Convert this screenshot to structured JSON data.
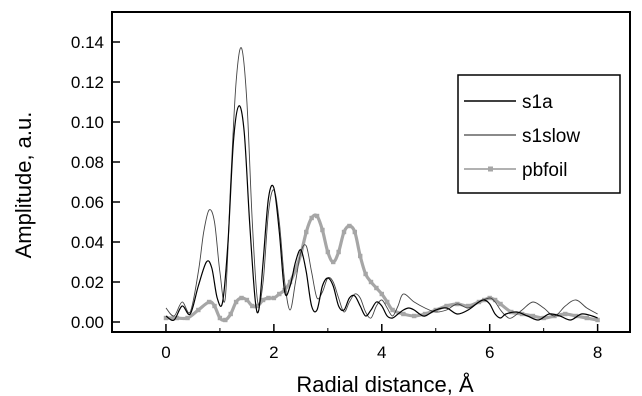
{
  "chart_data": {
    "type": "line",
    "xlabel": "Radial distance, Å",
    "ylabel": "Amplitude, a.u.",
    "xlim": [
      -1,
      8.6
    ],
    "ylim": [
      -0.005,
      0.155
    ],
    "x_ticks": [
      0,
      2,
      4,
      6,
      8
    ],
    "x_tick_labels": [
      "0",
      "2",
      "4",
      "6",
      "8"
    ],
    "y_ticks": [
      0.0,
      0.02,
      0.04,
      0.06,
      0.08,
      0.1,
      0.12,
      0.14
    ],
    "y_tick_labels": [
      "0.00",
      "0.02",
      "0.04",
      "0.06",
      "0.08",
      "0.10",
      "0.12",
      "0.14"
    ],
    "grid": false,
    "legend_position": "right",
    "series": [
      {
        "name": "s1a",
        "color": "#000000",
        "x": [
          0.0,
          0.15,
          0.3,
          0.45,
          0.6,
          0.75,
          0.85,
          0.95,
          1.05,
          1.15,
          1.25,
          1.35,
          1.45,
          1.55,
          1.65,
          1.72,
          1.8,
          1.9,
          2.0,
          2.1,
          2.2,
          2.3,
          2.4,
          2.5,
          2.6,
          2.7,
          2.8,
          2.9,
          3.0,
          3.1,
          3.2,
          3.3,
          3.4,
          3.5,
          3.6,
          3.7,
          3.8,
          3.9,
          4.0,
          4.1,
          4.2,
          4.3,
          4.4,
          4.5,
          4.6,
          4.7,
          4.8,
          5.0,
          5.2,
          5.4,
          5.6,
          5.8,
          5.9,
          6.0,
          6.1,
          6.2,
          6.3,
          6.5,
          6.7,
          6.9,
          7.1,
          7.3,
          7.5,
          7.7,
          7.9,
          8.0
        ],
        "values": [
          0.003,
          0.001,
          0.008,
          0.004,
          0.018,
          0.03,
          0.027,
          0.012,
          0.01,
          0.04,
          0.09,
          0.108,
          0.095,
          0.05,
          0.012,
          0.006,
          0.03,
          0.062,
          0.067,
          0.045,
          0.015,
          0.018,
          0.03,
          0.036,
          0.025,
          0.008,
          0.006,
          0.018,
          0.022,
          0.018,
          0.008,
          0.006,
          0.012,
          0.013,
          0.008,
          0.003,
          0.006,
          0.01,
          0.008,
          0.003,
          0.002,
          0.004,
          0.006,
          0.007,
          0.006,
          0.004,
          0.003,
          0.006,
          0.007,
          0.004,
          0.006,
          0.01,
          0.011,
          0.009,
          0.004,
          0.002,
          0.004,
          0.005,
          0.003,
          0.001,
          0.004,
          0.003,
          0.001,
          0.004,
          0.003,
          0.002
        ]
      },
      {
        "name": "s1slow",
        "color": "#444444",
        "x": [
          0.0,
          0.15,
          0.3,
          0.45,
          0.6,
          0.7,
          0.8,
          0.9,
          1.0,
          1.1,
          1.2,
          1.3,
          1.4,
          1.5,
          1.6,
          1.7,
          1.8,
          1.9,
          2.0,
          2.1,
          2.2,
          2.3,
          2.4,
          2.5,
          2.6,
          2.7,
          2.8,
          2.9,
          3.0,
          3.1,
          3.2,
          3.3,
          3.4,
          3.5,
          3.6,
          3.7,
          3.8,
          3.9,
          4.0,
          4.1,
          4.2,
          4.3,
          4.4,
          4.6,
          4.8,
          5.0,
          5.2,
          5.4,
          5.6,
          5.8,
          6.0,
          6.1,
          6.2,
          6.3,
          6.4,
          6.6,
          6.8,
          7.0,
          7.2,
          7.4,
          7.6,
          7.8,
          8.0
        ],
        "values": [
          0.007,
          0.003,
          0.01,
          0.005,
          0.025,
          0.045,
          0.056,
          0.05,
          0.025,
          0.012,
          0.07,
          0.12,
          0.137,
          0.11,
          0.05,
          0.01,
          0.02,
          0.055,
          0.066,
          0.05,
          0.02,
          0.006,
          0.02,
          0.035,
          0.038,
          0.025,
          0.012,
          0.015,
          0.022,
          0.02,
          0.012,
          0.005,
          0.01,
          0.014,
          0.012,
          0.005,
          0.002,
          0.008,
          0.011,
          0.007,
          0.003,
          0.008,
          0.014,
          0.01,
          0.007,
          0.005,
          0.006,
          0.009,
          0.007,
          0.01,
          0.012,
          0.01,
          0.006,
          0.003,
          0.002,
          0.006,
          0.01,
          0.007,
          0.003,
          0.008,
          0.011,
          0.007,
          0.004
        ]
      },
      {
        "name": "pbfoil",
        "color": "#a6a6a6",
        "x": [
          0.0,
          0.2,
          0.4,
          0.6,
          0.8,
          0.9,
          1.0,
          1.1,
          1.2,
          1.3,
          1.4,
          1.5,
          1.6,
          1.7,
          1.8,
          1.9,
          2.0,
          2.1,
          2.2,
          2.3,
          2.4,
          2.5,
          2.6,
          2.7,
          2.8,
          2.9,
          3.0,
          3.1,
          3.2,
          3.3,
          3.4,
          3.5,
          3.6,
          3.7,
          3.8,
          3.9,
          4.0,
          4.1,
          4.2,
          4.4,
          4.6,
          4.8,
          5.0,
          5.2,
          5.4,
          5.6,
          5.8,
          5.9,
          6.0,
          6.1,
          6.2,
          6.4,
          6.6,
          6.8,
          7.0,
          7.2,
          7.4,
          7.6,
          7.8,
          8.0
        ],
        "values": [
          0.002,
          0.002,
          0.002,
          0.006,
          0.01,
          0.008,
          0.002,
          0.001,
          0.004,
          0.01,
          0.012,
          0.011,
          0.008,
          0.008,
          0.011,
          0.012,
          0.012,
          0.014,
          0.016,
          0.02,
          0.026,
          0.034,
          0.045,
          0.052,
          0.053,
          0.046,
          0.035,
          0.03,
          0.035,
          0.045,
          0.048,
          0.045,
          0.033,
          0.024,
          0.02,
          0.017,
          0.014,
          0.01,
          0.006,
          0.004,
          0.003,
          0.004,
          0.006,
          0.008,
          0.009,
          0.008,
          0.01,
          0.011,
          0.012,
          0.011,
          0.009,
          0.005,
          0.004,
          0.003,
          0.002,
          0.003,
          0.004,
          0.003,
          0.002,
          0.001
        ]
      }
    ]
  }
}
